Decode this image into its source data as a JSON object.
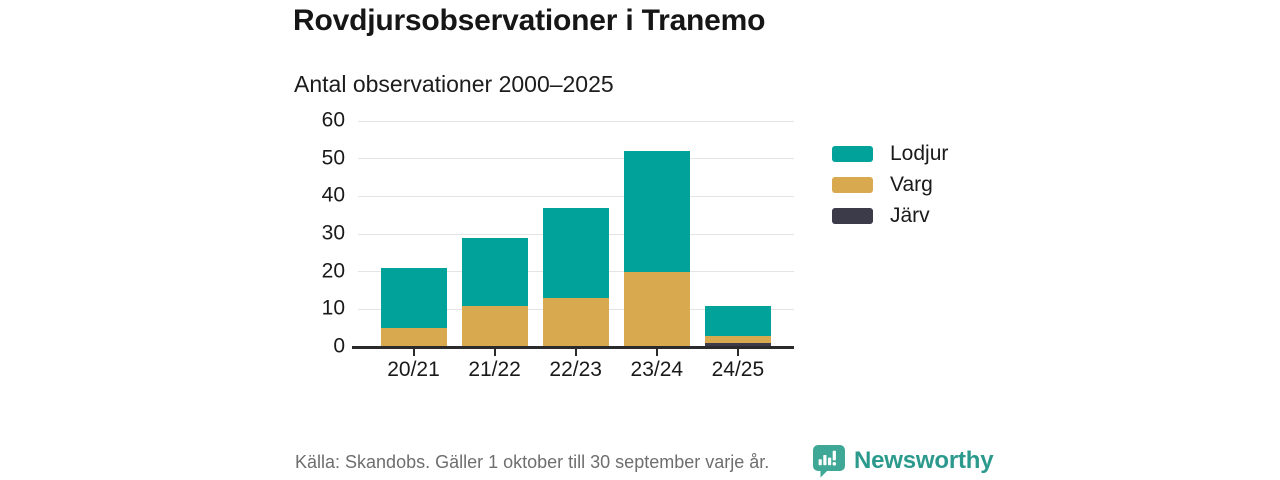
{
  "chart_data": {
    "type": "bar",
    "stacked": true,
    "title": "Rovdjursobservationer i Tranemo",
    "subtitle": "Antal observationer 2000–2025",
    "categories": [
      "20/21",
      "21/22",
      "22/23",
      "23/24",
      "24/25"
    ],
    "series": [
      {
        "name": "Lodjur",
        "color": "#00a29a",
        "values": [
          16,
          18,
          24,
          32,
          8
        ]
      },
      {
        "name": "Varg",
        "color": "#d9a950",
        "values": [
          5,
          11,
          13,
          20,
          2
        ]
      },
      {
        "name": "Järv",
        "color": "#3b3b49",
        "values": [
          0,
          0,
          0,
          0,
          1
        ]
      }
    ],
    "stack_order_bottom_to_top": [
      "Järv",
      "Varg",
      "Lodjur"
    ],
    "stacked_totals": [
      21,
      29,
      37,
      52,
      11
    ],
    "ylim": [
      0,
      60
    ],
    "yticks": [
      0,
      10,
      20,
      30,
      40,
      50,
      60
    ],
    "grid": true,
    "legend_position": "right",
    "colors": {
      "gridline": "#e4e4e4",
      "axis": "#2b2b2b",
      "tick_label": "#1a1a1a"
    }
  },
  "footer": {
    "source": "Källa: Skandobs. Gäller 1 oktober till 30 september varje år.",
    "brand": "Newsworthy",
    "brand_color": "#2b9a8d",
    "icon_color": "#3fa796",
    "icon": "bar-chart-speech-bubble-icon"
  }
}
